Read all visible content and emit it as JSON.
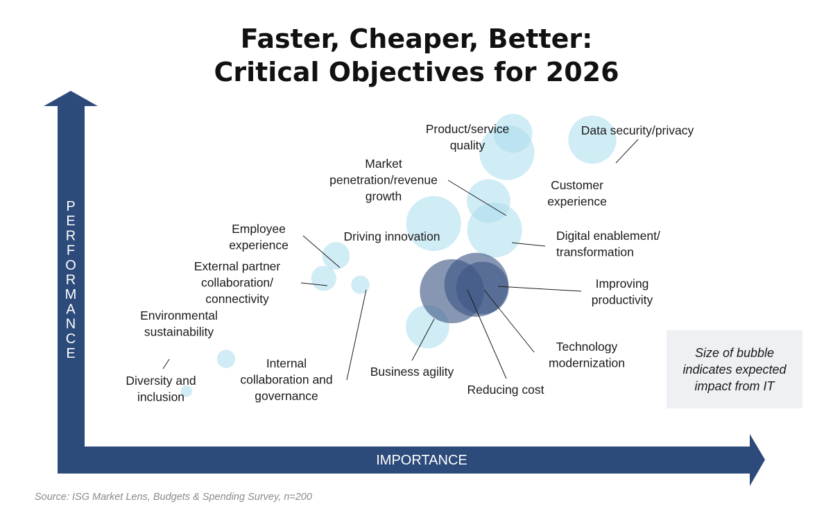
{
  "title": {
    "line1": "Faster, Cheaper, Better:",
    "line2": "Critical Objectives for 2026"
  },
  "axes": {
    "y_label": "PERFORMANCE",
    "x_label": "IMPORTANCE"
  },
  "note": "Size of bubble indicates expected impact from IT",
  "source": "Source: ISG Market Lens, Budgets & Spending Survey, n=200",
  "colors": {
    "arrow": "#2c4a7a",
    "bubble_light": "#a9dced",
    "bubble_dark": "#3e5685",
    "note_bg": "#eef0f4"
  },
  "chart_data": {
    "type": "scatter",
    "xlabel": "IMPORTANCE",
    "ylabel": "PERFORMANCE",
    "size_meaning": "Size of bubble indicates expected impact from IT",
    "points": [
      {
        "name": "Diversity and inclusion",
        "label_lines": [
          "Diversity and",
          "inclusion"
        ],
        "importance": 13.5,
        "performance": 12,
        "impact": 5,
        "tone": "light"
      },
      {
        "name": "Environmental sustainability",
        "label_lines": [
          "Environmental",
          "sustainability"
        ],
        "importance": 20,
        "performance": 22,
        "impact": 8,
        "tone": "light"
      },
      {
        "name": "External partner collaboration/ connectivity",
        "label_lines": [
          "External partner",
          "collaboration/",
          "connectivity"
        ],
        "importance": 36,
        "performance": 47,
        "impact": 11,
        "tone": "light"
      },
      {
        "name": "Employee experience",
        "label_lines": [
          "Employee",
          "experience"
        ],
        "importance": 38,
        "performance": 54,
        "impact": 12,
        "tone": "light"
      },
      {
        "name": "Internal collaboration and governance",
        "label_lines": [
          "Internal",
          "collaboration and",
          "governance"
        ],
        "importance": 42,
        "performance": 45,
        "impact": 8,
        "tone": "light"
      },
      {
        "name": "Business agility",
        "label_lines": [
          "Business agility"
        ],
        "importance": 53,
        "performance": 32,
        "impact": 19,
        "tone": "light"
      },
      {
        "name": "Driving innovation",
        "label_lines": [
          "Driving innovation"
        ],
        "importance": 54,
        "performance": 64,
        "impact": 24,
        "tone": "light"
      },
      {
        "name": "Reducing cost",
        "label_lines": [
          "Reducing cost"
        ],
        "importance": 57,
        "performance": 43,
        "impact": 28,
        "tone": "dark"
      },
      {
        "name": "Improving productivity",
        "label_lines": [
          "Improving",
          "productivity"
        ],
        "importance": 61,
        "performance": 45,
        "impact": 28,
        "tone": "dark"
      },
      {
        "name": "Technology modernization",
        "label_lines": [
          "Technology",
          "modernization"
        ],
        "importance": 62,
        "performance": 44,
        "impact": 23,
        "tone": "dark"
      },
      {
        "name": "Market penetration/revenue growth",
        "label_lines": [
          "Market",
          "penetration/revenue",
          "growth"
        ],
        "importance": 63,
        "performance": 71,
        "impact": 19,
        "tone": "light"
      },
      {
        "name": "Digital enablement/ transformation",
        "label_lines": [
          "Digital enablement/",
          "transformation"
        ],
        "importance": 64,
        "performance": 62,
        "impact": 24,
        "tone": "light"
      },
      {
        "name": "Customer experience",
        "label_lines": [
          "Customer",
          "experience"
        ],
        "importance": 66,
        "performance": 86,
        "impact": 24,
        "tone": "light"
      },
      {
        "name": "Product/service quality",
        "label_lines": [
          "Product/service",
          "quality"
        ],
        "importance": 67,
        "performance": 92,
        "impact": 17,
        "tone": "light"
      },
      {
        "name": "Data security/privacy",
        "label_lines": [
          "Data security/privacy"
        ],
        "importance": 80,
        "performance": 90,
        "impact": 21,
        "tone": "light"
      }
    ]
  }
}
